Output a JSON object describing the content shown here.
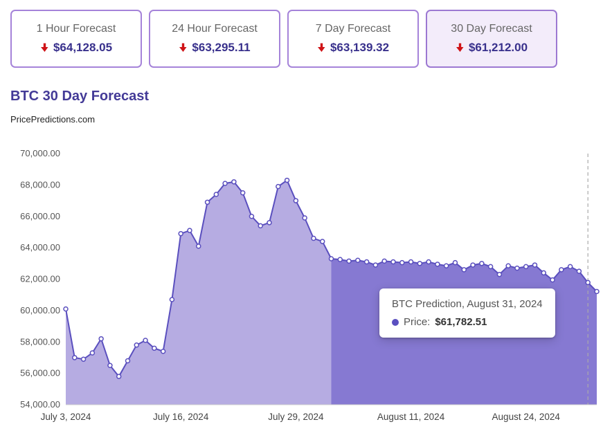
{
  "title": "BTC 30 Day Forecast",
  "subtitle": "PricePredictions.com",
  "cards": [
    {
      "label": "1 Hour Forecast",
      "price": "$64,128.05",
      "direction": "down"
    },
    {
      "label": "24 Hour Forecast",
      "price": "$63,295.11",
      "direction": "down"
    },
    {
      "label": "7 Day Forecast",
      "price": "$63,139.32",
      "direction": "down"
    },
    {
      "label": "30 Day Forecast",
      "price": "$61,212.00",
      "direction": "down",
      "selected": true
    }
  ],
  "tooltip": {
    "title": "BTC Prediction, August 31, 2024",
    "price_label": "Price:",
    "price_value": "$61,782.51"
  },
  "colors": {
    "accent_purple": "#433a97",
    "card_border": "#a583d9",
    "selected_card_bg": "#f3ecfa",
    "arrow_red": "#cf1317",
    "line": "#5a4fbe",
    "area_history": "#b6ace2",
    "area_forecast": "#8679d2",
    "dashed_marker": "#aaaaaa",
    "axis_line": "#cccccc",
    "tooltip_dot": "#5b50c0"
  },
  "chart_data": {
    "type": "area",
    "title": "BTC 30 Day Forecast",
    "xlabel": "",
    "ylabel": "",
    "ylim": [
      54000,
      70000
    ],
    "y_tick_step": 2000,
    "grid": false,
    "legend": false,
    "dates": [
      "Jul 3",
      "Jul 4",
      "Jul 5",
      "Jul 6",
      "Jul 7",
      "Jul 8",
      "Jul 9",
      "Jul 10",
      "Jul 11",
      "Jul 12",
      "Jul 13",
      "Jul 14",
      "Jul 15",
      "Jul 16",
      "Jul 17",
      "Jul 18",
      "Jul 19",
      "Jul 20",
      "Jul 21",
      "Jul 22",
      "Jul 23",
      "Jul 24",
      "Jul 25",
      "Jul 26",
      "Jul 27",
      "Jul 28",
      "Jul 29",
      "Jul 30",
      "Jul 31",
      "Aug 1",
      "Aug 2",
      "Aug 3",
      "Aug 4",
      "Aug 5",
      "Aug 6",
      "Aug 7",
      "Aug 8",
      "Aug 9",
      "Aug 10",
      "Aug 11",
      "Aug 12",
      "Aug 13",
      "Aug 14",
      "Aug 15",
      "Aug 16",
      "Aug 17",
      "Aug 18",
      "Aug 19",
      "Aug 20",
      "Aug 21",
      "Aug 22",
      "Aug 23",
      "Aug 24",
      "Aug 25",
      "Aug 26",
      "Aug 27",
      "Aug 28",
      "Aug 29",
      "Aug 30",
      "Aug 31",
      "Sep 1"
    ],
    "values": [
      60100,
      57000,
      56900,
      57300,
      58200,
      56500,
      55800,
      56800,
      57800,
      58100,
      57600,
      57400,
      60700,
      64900,
      65100,
      64100,
      66900,
      67400,
      68100,
      68200,
      67500,
      66000,
      65400,
      65600,
      67900,
      68300,
      67000,
      65900,
      64600,
      64400,
      63300,
      63250,
      63150,
      63200,
      63100,
      62900,
      63150,
      63100,
      63050,
      63100,
      63000,
      63100,
      62950,
      62850,
      63050,
      62600,
      62900,
      63000,
      62800,
      62300,
      62850,
      62700,
      62800,
      62900,
      62400,
      61950,
      62600,
      62800,
      62500,
      61782.51,
      61212
    ],
    "forecast_start_index": 30,
    "dashed_marker_index": 59,
    "x_ticks": [
      {
        "index": 0,
        "label": "July 3, 2024"
      },
      {
        "index": 13,
        "label": "July 16, 2024"
      },
      {
        "index": 26,
        "label": "July 29, 2024"
      },
      {
        "index": 39,
        "label": "August 11, 2024"
      },
      {
        "index": 52,
        "label": "August 24, 2024"
      }
    ]
  }
}
